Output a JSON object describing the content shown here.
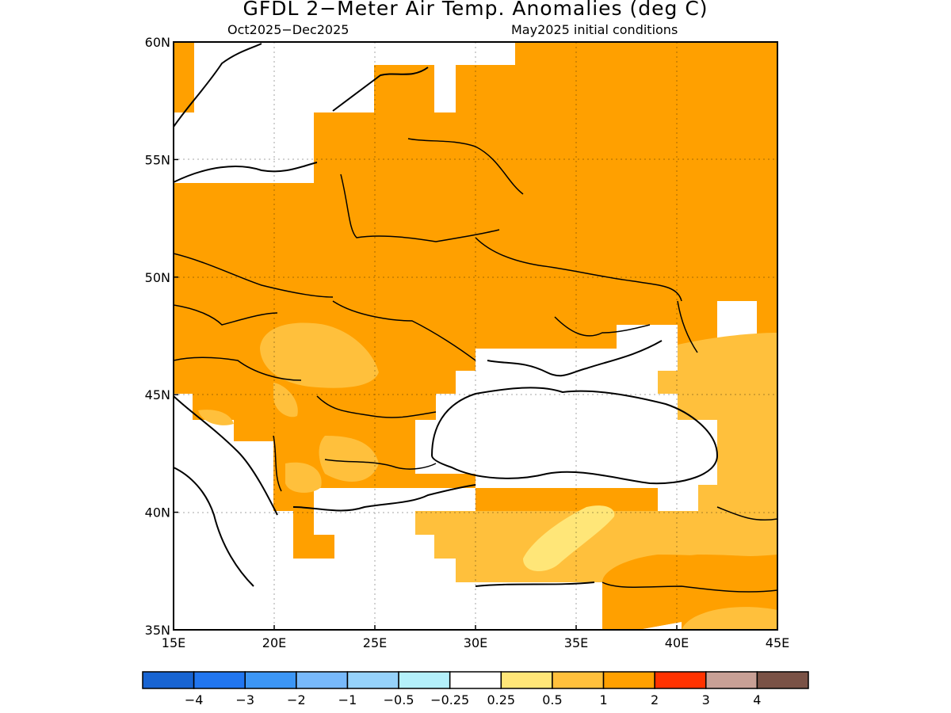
{
  "title": "GFDL 2−Meter Air Temp. Anomalies (deg C)",
  "subtitle_left": "Oct2025−Dec2025",
  "subtitle_right": "May2025 initial conditions",
  "map": {
    "lon_range": [
      15,
      45
    ],
    "lat_range": [
      35,
      60
    ],
    "lon_ticks": [
      {
        "value": 15,
        "label": "15E"
      },
      {
        "value": 20,
        "label": "20E"
      },
      {
        "value": 25,
        "label": "25E"
      },
      {
        "value": 30,
        "label": "30E"
      },
      {
        "value": 35,
        "label": "35E"
      },
      {
        "value": 40,
        "label": "40E"
      },
      {
        "value": 45,
        "label": "45E"
      }
    ],
    "lat_ticks": [
      {
        "value": 35,
        "label": "35N"
      },
      {
        "value": 40,
        "label": "40N"
      },
      {
        "value": 45,
        "label": "45N"
      },
      {
        "value": 50,
        "label": "50N"
      },
      {
        "value": 55,
        "label": "55N"
      },
      {
        "value": 60,
        "label": "60N"
      }
    ],
    "gridlines": "dotted"
  },
  "colorbar": {
    "colors": [
      "#1864d2",
      "#2176f0",
      "#3c96f5",
      "#78b9fa",
      "#96d2fa",
      "#b4f0fa",
      "#ffffff",
      "#ffe678",
      "#ffc03c",
      "#ffa000",
      "#ff3200",
      "#c8a096",
      "#7a5246"
    ],
    "labels": [
      "−4",
      "−3",
      "−2",
      "−1",
      "−0.5",
      "−0.25",
      "0.25",
      "0.5",
      "1",
      "2",
      "3",
      "4"
    ]
  },
  "anomaly_colors": {
    "above_1": "#ffa000",
    "between_0.5_1": "#ffc03c",
    "between_0.25_0.5": "#ffe678",
    "near_zero": "#ffffff"
  }
}
